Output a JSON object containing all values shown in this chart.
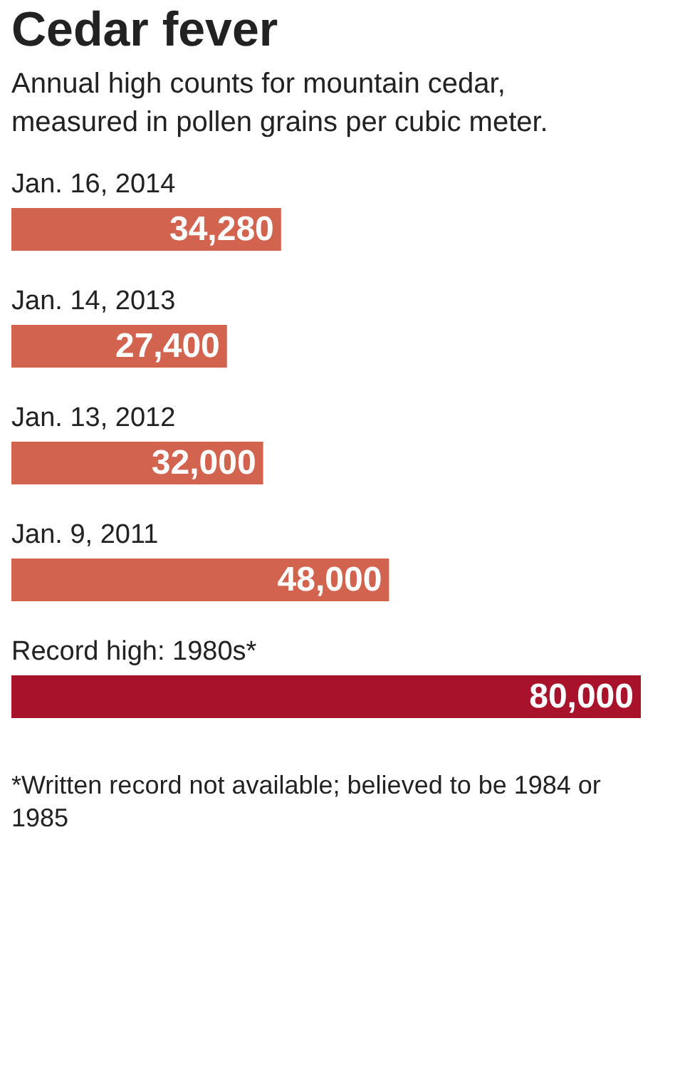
{
  "chart_data": {
    "type": "bar",
    "orientation": "horizontal",
    "title": "Cedar fever",
    "subtitle": "Annual high counts for mountain cedar, measured in pollen grains per cubic meter.",
    "categories": [
      "Jan. 16, 2014",
      "Jan. 14, 2013",
      "Jan. 13, 2012",
      "Jan. 9, 2011",
      "Record high: 1980s*"
    ],
    "values": [
      34280,
      27400,
      32000,
      48000,
      80000
    ],
    "colors": [
      "#d2644f",
      "#d2644f",
      "#d2644f",
      "#d2644f",
      "#a8132b"
    ],
    "value_labels": [
      "34,280",
      "27,400",
      "32,000",
      "48,000",
      "80,000"
    ],
    "tick_labels": "y",
    "annotations": [
      "*Written record not available; believed to be 1984 or 1985"
    ]
  }
}
